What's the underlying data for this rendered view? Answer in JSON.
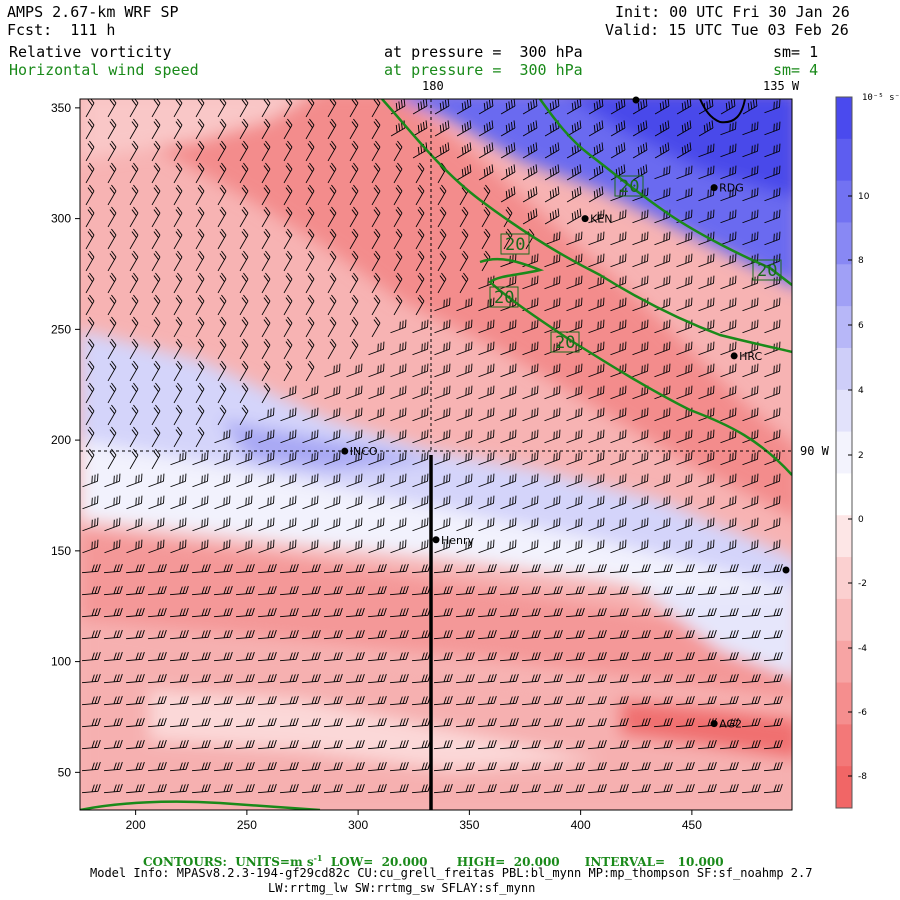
{
  "header": {
    "model": "AMPS 2.67-km WRF SP",
    "forecast": "Fcst:  111 h",
    "init": "Init: 00 UTC Fri 30 Jan 26",
    "valid": "Valid: 15 UTC Tue 03 Feb 26",
    "field1_name": "Relative vorticity",
    "field1_level": "at pressure =  300 hPa",
    "field1_sm": "sm= 1",
    "field2_name": "Horizontal wind speed",
    "field2_level": "at pressure =  300 hPa",
    "field2_sm": "sm= 4"
  },
  "map": {
    "lon_labels": {
      "top_180": "180",
      "top_135w": "135 W",
      "right_90w": "90 W"
    },
    "stations": [
      {
        "name": "RDG",
        "x": 460,
        "y": 314
      },
      {
        "name": "KEN",
        "x": 402,
        "y": 300
      },
      {
        "name": "HRC",
        "x": 469,
        "y": 238
      },
      {
        "name": "INCO",
        "x": 294,
        "y": 195
      },
      {
        "name": "Henry",
        "x": 335,
        "y": 155
      },
      {
        "name": "AG2",
        "x": 460,
        "y": 72
      }
    ],
    "contour_labels": [
      "20",
      "20",
      "20",
      "20",
      "20"
    ]
  },
  "chart_data": {
    "type": "heatmap",
    "x_ticks": [
      "200",
      "250",
      "300",
      "350",
      "400",
      "450"
    ],
    "y_ticks": [
      "50",
      "100",
      "150",
      "200",
      "250",
      "300",
      "350"
    ],
    "xlim": [
      175,
      495
    ],
    "ylim": [
      33,
      354
    ],
    "colorbar": {
      "unit": "10⁻⁵ s⁻¹",
      "ticks": [
        "10",
        "8",
        "6",
        "4",
        "2",
        "0",
        "-2",
        "-4",
        "-6",
        "-8"
      ],
      "colors": [
        "#4a4aee",
        "#5d5df0",
        "#7272f2",
        "#8888f4",
        "#a0a0f6",
        "#b7b7f8",
        "#ceceF9",
        "#e2e2fb",
        "#f3f3fd",
        "#ffffff",
        "#fde6e6",
        "#fbd0d0",
        "#f9baba",
        "#f7a4a4",
        "#f58e8e",
        "#f37878",
        "#f16666"
      ]
    }
  },
  "footer": {
    "contours": "CONTOURS:  UNITS=m s",
    "contours_sup": "-1",
    "contours_rest": "  LOW=  20.000       HIGH=  20.000      INTERVAL=   10.000",
    "model_info_1": "Model Info: MPASv8.2.3-194-gf29cd82c CU:cu_grell_freitas PBL:bl_mynn MP:mp_thompson SF:sf_noahmp 2.7",
    "model_info_2": "LW:rrtmg_lw SW:rrtmg_sw SFLAY:sf_mynn"
  }
}
